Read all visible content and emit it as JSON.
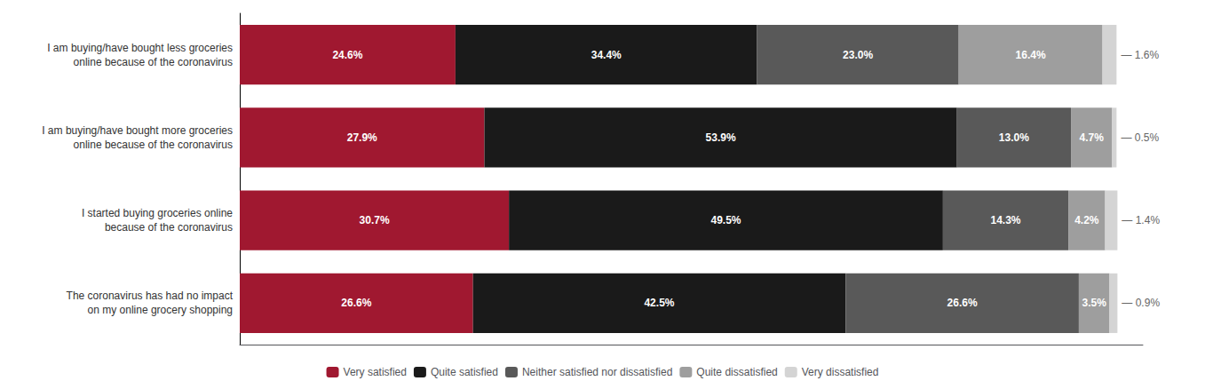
{
  "chart_data": {
    "type": "bar",
    "orientation": "horizontal",
    "stacked": true,
    "categories": [
      "I am buying/have bought less groceries\nonline because of the coronavirus",
      "I am buying/have bought more groceries\nonline because of the coronavirus",
      "I started buying groceries online\nbecause of the coronavirus",
      "The coronavirus has had no impact\non my online grocery shopping"
    ],
    "series": [
      {
        "name": "Very satisfied",
        "color": "#A01830",
        "values": [
          24.6,
          27.9,
          30.7,
          26.6
        ],
        "value_labels": [
          "24.6%",
          "27.9%",
          "30.7%",
          "26.6%"
        ]
      },
      {
        "name": "Quite satisfied",
        "color": "#1A1A1A",
        "values": [
          34.4,
          53.9,
          49.5,
          42.5
        ],
        "value_labels": [
          "34.4%",
          "53.9%",
          "49.5%",
          "42.5%"
        ]
      },
      {
        "name": "Neither satisfied nor dissatisfied",
        "color": "#595959",
        "values": [
          23.0,
          13.0,
          14.3,
          26.6
        ],
        "value_labels": [
          "23.0%",
          "13.0%",
          "14.3%",
          "26.6%"
        ]
      },
      {
        "name": "Quite dissatisfied",
        "color": "#9E9E9E",
        "values": [
          16.4,
          4.7,
          4.2,
          3.5
        ],
        "value_labels": [
          "16.4%",
          "4.7%",
          "4.2%",
          "3.5%"
        ]
      },
      {
        "name": "Very dissatisfied",
        "color": "#D4D4D4",
        "values": [
          1.6,
          0.5,
          1.4,
          0.9
        ],
        "value_labels": [
          "— 1.6%",
          "— 0.5%",
          "— 1.4%",
          "— 0.9%"
        ]
      }
    ],
    "xlim": [
      0,
      103
    ],
    "tick_labels": "y",
    "data_labels": true,
    "grid": false,
    "legend": "bottom"
  }
}
